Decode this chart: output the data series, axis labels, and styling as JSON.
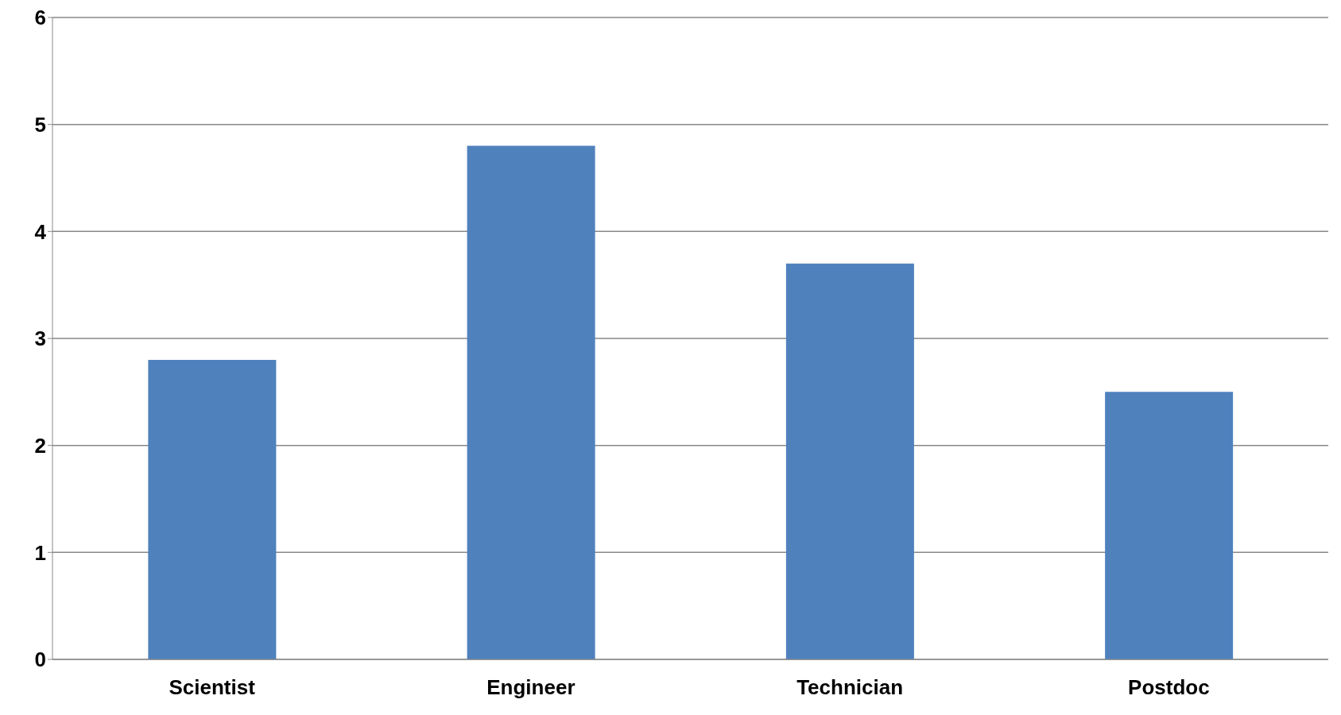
{
  "chart_data": {
    "type": "bar",
    "categories": [
      "Scientist",
      "Engineer",
      "Technician",
      "Postdoc"
    ],
    "values": [
      2.8,
      4.8,
      3.7,
      2.5
    ],
    "color": "#4f81bd",
    "ylim": [
      0,
      6
    ],
    "yticks": [
      0,
      1,
      2,
      3,
      4,
      5,
      6
    ],
    "grid": "y"
  }
}
